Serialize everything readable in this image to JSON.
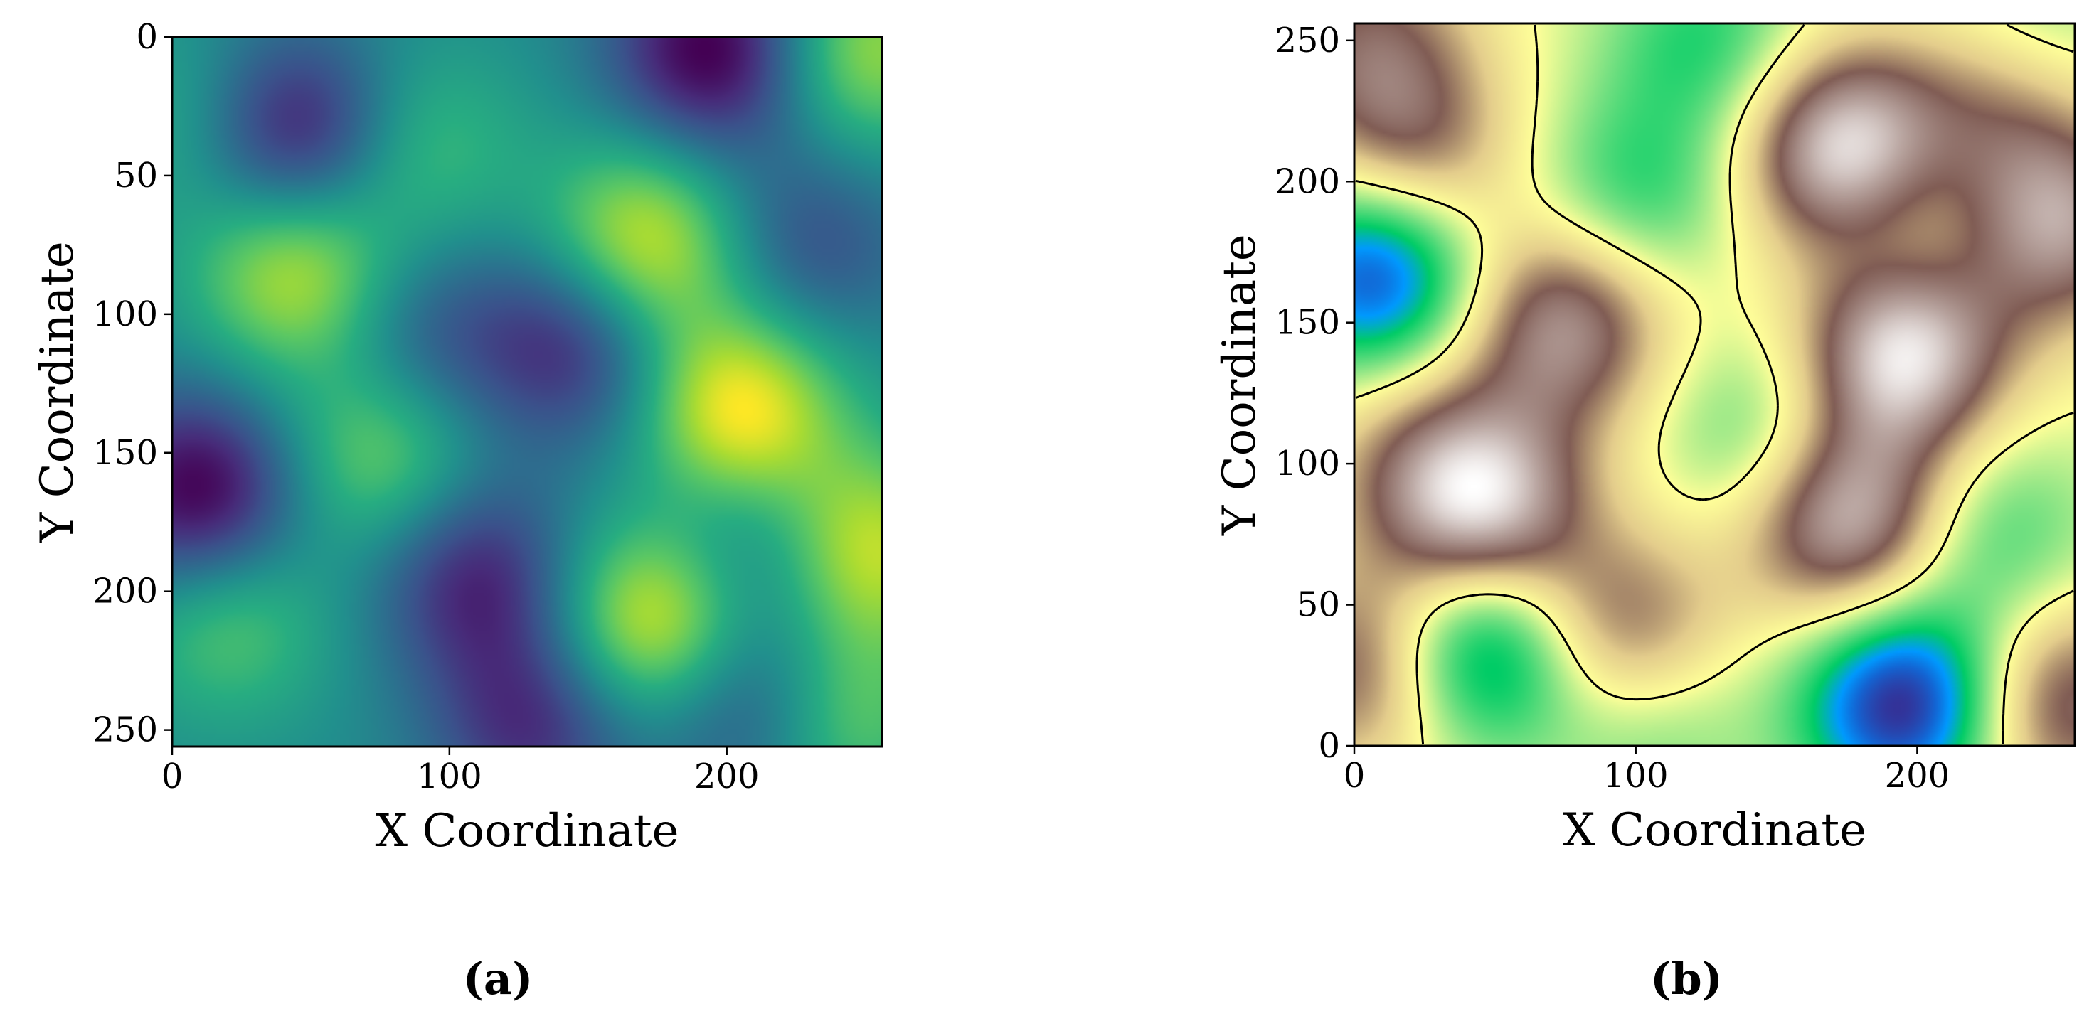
{
  "figure": {
    "caption_a": "(a)",
    "caption_b": "(b)"
  },
  "chart_data": [
    {
      "type": "heatmap",
      "panel": "(a)",
      "colormap": "viridis",
      "xlabel": "X Coordinate",
      "ylabel": "Y Coordinate",
      "xlim": [
        0,
        256
      ],
      "ylim": [
        256,
        0
      ],
      "y_axis_inverted": true,
      "x_ticks": [
        0,
        100,
        200
      ],
      "x_tick_labels": [
        "0",
        "100",
        "200"
      ],
      "y_ticks": [
        0,
        50,
        100,
        150,
        200,
        250
      ],
      "y_tick_labels": [
        "0",
        "50",
        "100",
        "150",
        "200",
        "250"
      ],
      "value_range": [
        0,
        1
      ],
      "grid": false,
      "blobs": [
        {
          "x": 195,
          "y": 5,
          "value": 0.02
        },
        {
          "x": 10,
          "y": 165,
          "value": 0.02
        },
        {
          "x": 45,
          "y": 35,
          "value": 0.08
        },
        {
          "x": 145,
          "y": 110,
          "value": 0.15
        },
        {
          "x": 110,
          "y": 195,
          "value": 0.15
        },
        {
          "x": 130,
          "y": 248,
          "value": 0.18
        },
        {
          "x": 210,
          "y": 240,
          "value": 0.2
        },
        {
          "x": 230,
          "y": 75,
          "value": 0.28
        },
        {
          "x": 205,
          "y": 185,
          "value": 0.3
        },
        {
          "x": 90,
          "y": 110,
          "value": 0.3
        },
        {
          "x": 250,
          "y": 5,
          "value": 0.85
        },
        {
          "x": 45,
          "y": 85,
          "value": 0.9
        },
        {
          "x": 170,
          "y": 75,
          "value": 0.95
        },
        {
          "x": 205,
          "y": 135,
          "value": 1.0
        },
        {
          "x": 175,
          "y": 210,
          "value": 1.0
        },
        {
          "x": 252,
          "y": 185,
          "value": 0.9
        },
        {
          "x": 75,
          "y": 150,
          "value": 0.8
        },
        {
          "x": 20,
          "y": 210,
          "value": 0.75
        },
        {
          "x": 90,
          "y": 40,
          "value": 0.7
        },
        {
          "x": 5,
          "y": 30,
          "value": 0.65
        },
        {
          "x": 240,
          "y": 245,
          "value": 0.8
        }
      ]
    },
    {
      "type": "heatmap",
      "panel": "(b)",
      "colormap": "terrain",
      "contour": "single level, black",
      "xlabel": "X Coordinate",
      "ylabel": "Y Coordinate",
      "xlim": [
        0,
        256
      ],
      "ylim": [
        0,
        256
      ],
      "y_axis_inverted": false,
      "x_ticks": [
        0,
        100,
        200
      ],
      "x_tick_labels": [
        "0",
        "100",
        "200"
      ],
      "y_ticks": [
        0,
        50,
        100,
        150,
        200,
        250
      ],
      "y_tick_labels": [
        "0",
        "50",
        "100",
        "150",
        "200",
        "250"
      ],
      "value_range": [
        0,
        1
      ],
      "grid": false,
      "blobs": [
        {
          "x": 8,
          "y": 168,
          "value": 0.05
        },
        {
          "x": 45,
          "y": 35,
          "value": 0.1
        },
        {
          "x": 195,
          "y": 15,
          "value": 0.0
        },
        {
          "x": 100,
          "y": 195,
          "value": 0.3
        },
        {
          "x": 125,
          "y": 250,
          "value": 0.3
        },
        {
          "x": 145,
          "y": 110,
          "value": 0.33
        },
        {
          "x": 105,
          "y": 8,
          "value": 0.35
        },
        {
          "x": 228,
          "y": 75,
          "value": 0.33
        },
        {
          "x": 195,
          "y": 185,
          "value": 0.33
        },
        {
          "x": 240,
          "y": 250,
          "value": 0.35
        },
        {
          "x": 175,
          "y": 210,
          "value": 1.0
        },
        {
          "x": 195,
          "y": 140,
          "value": 0.98
        },
        {
          "x": 45,
          "y": 85,
          "value": 0.95
        },
        {
          "x": 175,
          "y": 80,
          "value": 0.92
        },
        {
          "x": 75,
          "y": 150,
          "value": 0.85
        },
        {
          "x": 250,
          "y": 185,
          "value": 0.85
        },
        {
          "x": 5,
          "y": 28,
          "value": 0.8
        },
        {
          "x": 20,
          "y": 210,
          "value": 0.75
        },
        {
          "x": 252,
          "y": 15,
          "value": 0.8
        },
        {
          "x": 95,
          "y": 40,
          "value": 0.78
        },
        {
          "x": 5,
          "y": 250,
          "value": 0.72
        },
        {
          "x": 20,
          "y": 105,
          "value": 0.62
        },
        {
          "x": 230,
          "y": 230,
          "value": 0.72
        }
      ]
    }
  ]
}
